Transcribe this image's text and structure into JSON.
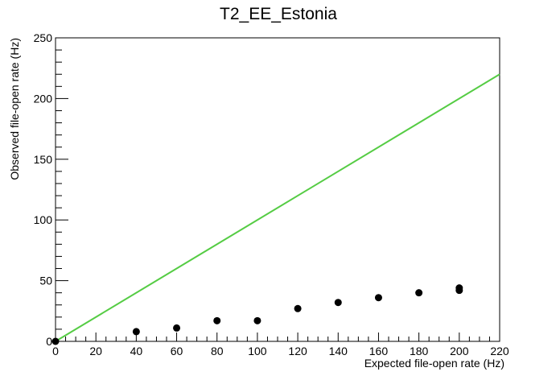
{
  "chart_data": {
    "type": "scatter",
    "title": "T2_EE_Estonia",
    "xlabel": "Expected file-open rate (Hz)",
    "ylabel": "Observed file-open rate (Hz)",
    "xlim": [
      0,
      220
    ],
    "ylim": [
      0,
      250
    ],
    "x_ticks": [
      0,
      20,
      40,
      60,
      80,
      100,
      120,
      140,
      160,
      180,
      200,
      220
    ],
    "y_ticks": [
      0,
      50,
      100,
      150,
      200,
      250
    ],
    "grid": false,
    "legend": "none",
    "colors": {
      "points": "#000000",
      "reference_line": "#55cc44",
      "axes": "#000000"
    },
    "series": [
      {
        "points": [
          [
            0,
            0
          ],
          [
            40,
            8
          ],
          [
            60,
            11
          ],
          [
            80,
            17
          ],
          [
            100,
            17
          ],
          [
            120,
            27
          ],
          [
            140,
            32
          ],
          [
            160,
            36
          ],
          [
            180,
            40
          ],
          [
            200,
            42
          ],
          [
            200,
            44
          ]
        ]
      }
    ],
    "reference_line": {
      "x": [
        0,
        220
      ],
      "y": [
        0,
        220
      ]
    }
  }
}
